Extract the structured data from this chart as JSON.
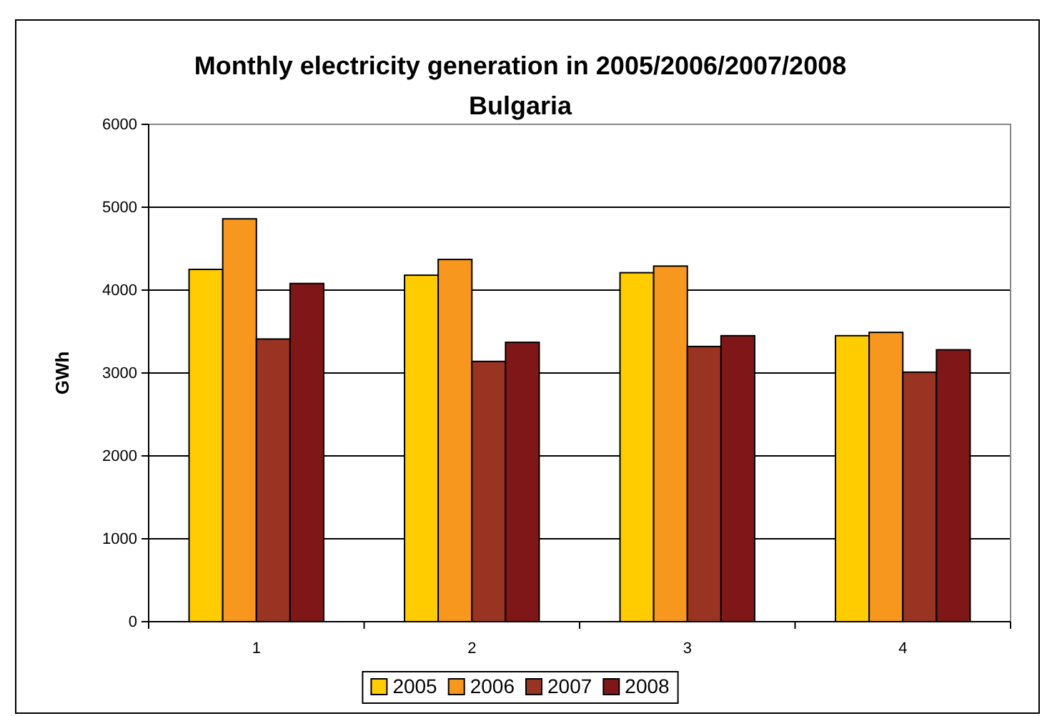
{
  "chart_data": {
    "type": "bar",
    "title": "Monthly electricity generation in 2005/2006/2007/2008",
    "subtitle": "Bulgaria",
    "ylabel": "GWh",
    "categories": [
      "1",
      "2",
      "3",
      "4"
    ],
    "series": [
      {
        "name": "2005",
        "color": "#ffcc00",
        "values": [
          4250,
          4180,
          4210,
          3450
        ]
      },
      {
        "name": "2006",
        "color": "#f7971e",
        "values": [
          4860,
          4370,
          4290,
          3490
        ]
      },
      {
        "name": "2007",
        "color": "#993322",
        "values": [
          3410,
          3140,
          3320,
          3010
        ]
      },
      {
        "name": "2008",
        "color": "#7f1618",
        "values": [
          4080,
          3370,
          3450,
          3280
        ]
      }
    ],
    "ylim": [
      0,
      6000
    ],
    "yticks": [
      0,
      1000,
      2000,
      3000,
      4000,
      5000,
      6000
    ],
    "grid": "y",
    "legend": "bottom"
  }
}
